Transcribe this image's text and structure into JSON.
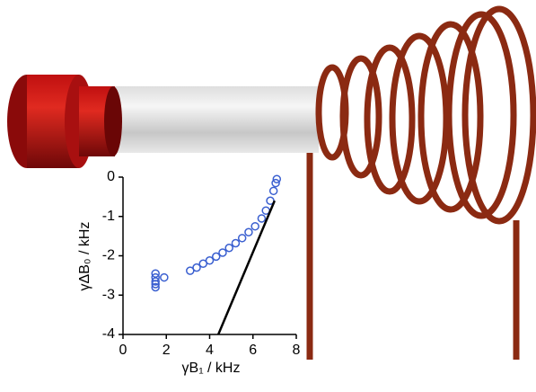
{
  "chart_data": {
    "type": "scatter",
    "x_label": "γB₁ / kHz",
    "y_label": "γΔB₀ / kHz",
    "xlim": [
      0,
      8
    ],
    "xticks": [
      0,
      2,
      4,
      6,
      8
    ],
    "ylim": [
      -4,
      0
    ],
    "yticks": [
      0,
      -1,
      -2,
      -3,
      -4
    ],
    "series": [
      {
        "type": "scatter",
        "color": "#3a5fd0",
        "x": [
          1.5,
          1.5,
          1.5,
          1.5,
          1.5,
          1.9,
          3.1,
          3.4,
          3.7,
          4.0,
          4.3,
          4.6,
          4.9,
          5.2,
          5.5,
          5.8,
          6.1,
          6.4,
          6.6,
          6.8,
          6.95,
          7.05,
          7.1
        ],
        "values": [
          -2.45,
          -2.55,
          -2.65,
          -2.72,
          -2.8,
          -2.55,
          -2.38,
          -2.3,
          -2.2,
          -2.12,
          -2.02,
          -1.92,
          -1.8,
          -1.68,
          -1.55,
          -1.4,
          -1.25,
          -1.05,
          -0.85,
          -0.6,
          -0.35,
          -0.15,
          -0.05
        ]
      },
      {
        "type": "line",
        "color": "#000000",
        "x": [
          4.4,
          7.0
        ],
        "values": [
          -4,
          -0.6
        ]
      }
    ]
  }
}
